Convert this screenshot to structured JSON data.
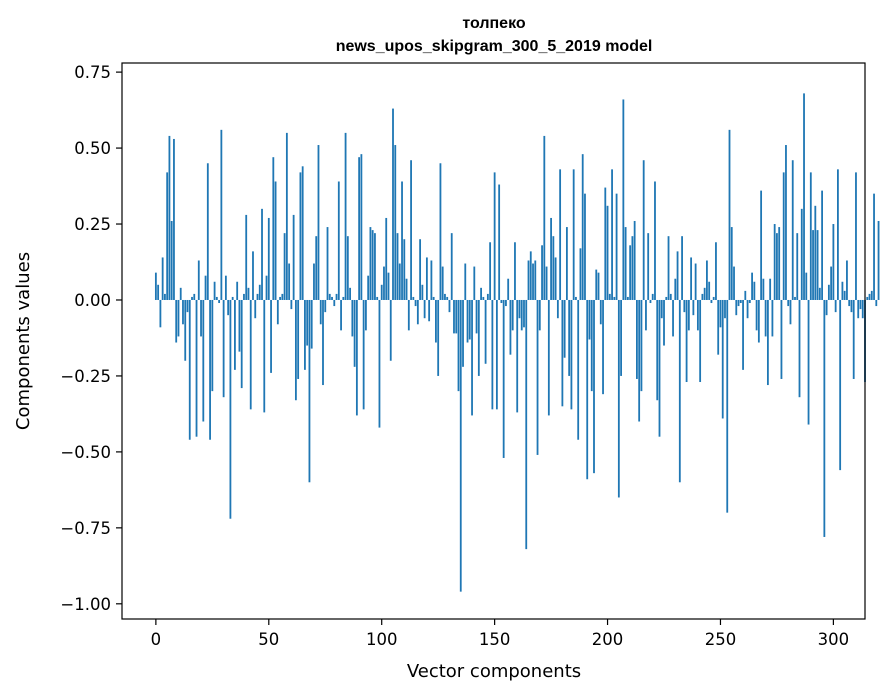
{
  "chart_data": {
    "type": "bar",
    "title_line1": "толпеко",
    "title_line2": "news_upos_skipgram_300_5_2019 model",
    "xlabel": "Vector components",
    "ylabel": "Components values",
    "xlim": [
      -15,
      314
    ],
    "ylim": [
      -1.05,
      0.78
    ],
    "xticks": [
      0,
      50,
      100,
      150,
      200,
      250,
      300
    ],
    "xtick_labels": [
      "0",
      "50",
      "100",
      "150",
      "200",
      "250",
      "300"
    ],
    "yticks": [
      0.75,
      0.5,
      0.25,
      0.0,
      -0.25,
      -0.5,
      -0.75,
      -1.0
    ],
    "ytick_labels": [
      "0.75",
      "0.50",
      "0.25",
      "0.00",
      "−0.25",
      "−0.50",
      "−0.75",
      "−1.00"
    ],
    "bar_color": "#1f77b4",
    "values": [
      0.09,
      0.05,
      -0.09,
      0.14,
      0.02,
      0.42,
      0.54,
      0.26,
      0.53,
      -0.14,
      -0.12,
      0.04,
      -0.08,
      -0.2,
      -0.04,
      -0.46,
      0.01,
      0.02,
      -0.45,
      0.13,
      -0.12,
      -0.4,
      0.08,
      0.45,
      -0.46,
      -0.3,
      0.06,
      0.01,
      -0.01,
      0.56,
      -0.32,
      0.08,
      -0.05,
      -0.72,
      0.01,
      -0.23,
      0.06,
      -0.17,
      -0.29,
      0.02,
      0.28,
      0.04,
      -0.36,
      0.16,
      -0.06,
      0.02,
      0.05,
      0.3,
      -0.37,
      0.08,
      0.27,
      -0.24,
      0.47,
      0.39,
      -0.08,
      0.01,
      0.02,
      0.22,
      0.55,
      0.12,
      -0.03,
      0.28,
      -0.33,
      -0.26,
      0.42,
      0.44,
      -0.23,
      -0.15,
      -0.6,
      -0.16,
      0.12,
      0.21,
      0.51,
      -0.08,
      -0.28,
      -0.04,
      0.24,
      0.02,
      0.01,
      -0.02,
      0.02,
      0.39,
      -0.1,
      0.01,
      0.55,
      0.21,
      0.04,
      -0.12,
      -0.22,
      -0.38,
      0.47,
      0.48,
      -0.36,
      -0.1,
      0.08,
      0.24,
      0.23,
      0.22,
      0.01,
      -0.42,
      0.05,
      0.11,
      0.27,
      0.09,
      -0.2,
      0.63,
      0.51,
      0.22,
      0.12,
      0.39,
      0.2,
      0.07,
      -0.1,
      0.46,
      0.01,
      -0.02,
      -0.08,
      0.2,
      0.05,
      -0.06,
      0.14,
      -0.07,
      0.13,
      0.01,
      -0.14,
      -0.25,
      0.45,
      0.11,
      0.02,
      0.01,
      -0.04,
      0.22,
      -0.11,
      -0.11,
      -0.3,
      -0.96,
      -0.22,
      0.12,
      -0.14,
      -0.13,
      -0.38,
      0.11,
      -0.11,
      -0.25,
      0.04,
      0.01,
      -0.21,
      0.02,
      0.19,
      -0.36,
      0.42,
      -0.36,
      0.38,
      -0.01,
      -0.52,
      -0.02,
      0.07,
      -0.18,
      -0.1,
      0.19,
      -0.37,
      -0.06,
      -0.1,
      -0.09,
      -0.82,
      0.13,
      0.16,
      0.12,
      0.13,
      -0.51,
      -0.1,
      0.18,
      0.54,
      0.11,
      -0.38,
      0.27,
      0.21,
      0.14,
      -0.06,
      0.43,
      -0.35,
      -0.19,
      0.24,
      -0.25,
      -0.36,
      0.43,
      0.01,
      -0.46,
      0.17,
      0.48,
      0.35,
      -0.59,
      -0.13,
      -0.3,
      -0.57,
      0.1,
      0.09,
      -0.08,
      -0.31,
      0.37,
      0.31,
      0.02,
      0.43,
      0.01,
      0.35,
      -0.65,
      -0.25,
      0.66,
      0.24,
      0.01,
      0.18,
      0.21,
      0.26,
      -0.26,
      -0.4,
      -0.3,
      0.46,
      -0.1,
      0.22,
      -0.01,
      0.02,
      0.39,
      -0.33,
      -0.45,
      -0.06,
      -0.15,
      0.01,
      0.21,
      0.02,
      -0.12,
      0.07,
      0.16,
      -0.6,
      0.21,
      -0.04,
      -0.27,
      -0.1,
      0.14,
      -0.05,
      0.12,
      -0.1,
      -0.27,
      0.02,
      0.04,
      0.13,
      0.06,
      -0.01,
      0.01,
      0.19,
      -0.18,
      -0.09,
      -0.39,
      -0.06,
      -0.7,
      0.56,
      0.24,
      0.11,
      -0.05,
      -0.02,
      -0.01,
      -0.23,
      0.03,
      -0.06,
      -0.01,
      0.09,
      0.06,
      -0.1,
      -0.14,
      0.36,
      0.07,
      -0.12,
      -0.28,
      0.07,
      -0.12,
      0.25,
      0.22,
      0.24,
      -0.26,
      0.42,
      0.51,
      -0.02,
      -0.08,
      0.46,
      0.01,
      0.22,
      -0.32,
      0.3,
      0.68,
      0.09,
      -0.41,
      0.42,
      0.23,
      0.31,
      0.23,
      0.04,
      0.36,
      -0.78,
      -0.05,
      0.05,
      0.11,
      0.25,
      -0.04,
      0.43,
      -0.56,
      0.06,
      0.03,
      0.13,
      -0.02,
      -0.04,
      -0.26,
      0.42,
      -0.06,
      -0.03,
      -0.06,
      -0.27,
      0.01,
      0.02,
      0.03,
      0.35,
      -0.02,
      0.26
    ]
  }
}
